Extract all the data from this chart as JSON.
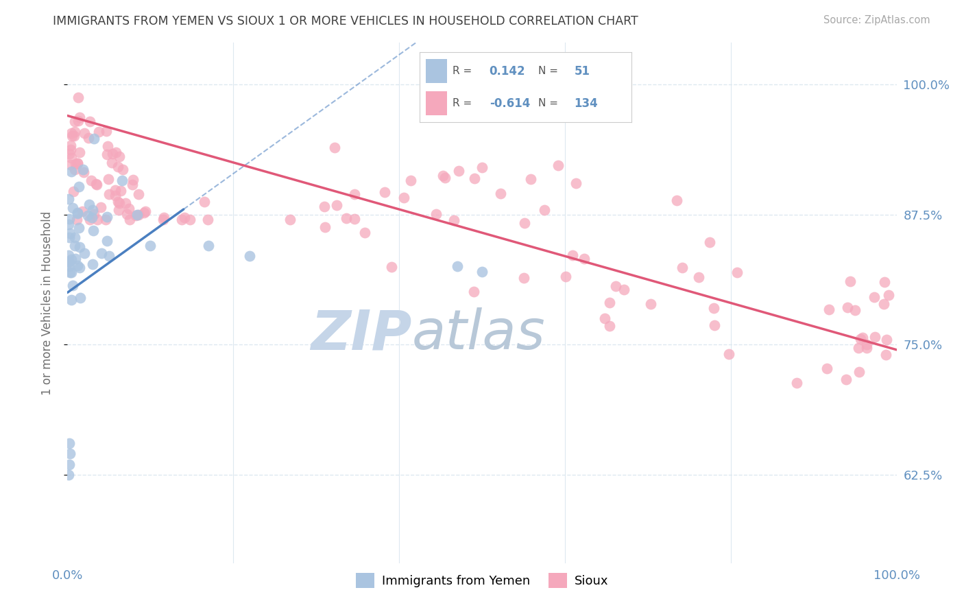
{
  "title": "IMMIGRANTS FROM YEMEN VS SIOUX 1 OR MORE VEHICLES IN HOUSEHOLD CORRELATION CHART",
  "source_text": "Source: ZipAtlas.com",
  "ylabel": "1 or more Vehicles in Household",
  "ytick_labels": [
    "100.0%",
    "87.5%",
    "75.0%",
    "62.5%"
  ],
  "ytick_values": [
    1.0,
    0.875,
    0.75,
    0.625
  ],
  "legend_blue_label": "Immigrants from Yemen",
  "legend_pink_label": "Sioux",
  "R_blue": 0.142,
  "N_blue": 51,
  "R_pink": -0.614,
  "N_pink": 134,
  "blue_color": "#aac4e0",
  "pink_color": "#f5a8bc",
  "blue_line_color": "#4a7fc0",
  "pink_line_color": "#e05878",
  "watermark_zip_color": "#c5d5e8",
  "watermark_atlas_color": "#b8c8d8",
  "background_color": "#ffffff",
  "grid_color": "#dde8f0",
  "title_color": "#404040",
  "source_color": "#a8a8a8",
  "axis_label_color": "#6090c0",
  "ylabel_color": "#707070",
  "xmin": 0.0,
  "xmax": 1.0,
  "ymin": 0.54,
  "ymax": 1.04,
  "blue_trend_x0": 0.0,
  "blue_trend_y0": 0.8,
  "blue_trend_x1": 0.14,
  "blue_trend_y1": 0.88,
  "pink_trend_x0": 0.0,
  "pink_trend_y0": 0.97,
  "pink_trend_x1": 1.0,
  "pink_trend_y1": 0.745
}
